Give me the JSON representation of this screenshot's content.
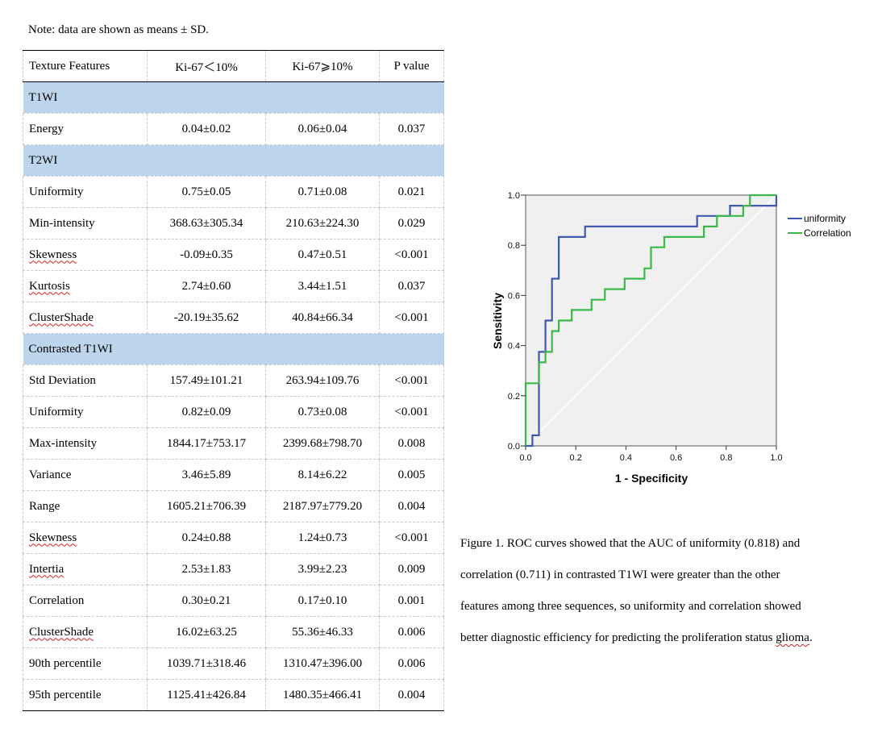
{
  "note": "Note: data are shown as means ± SD.",
  "table": {
    "headers": [
      "Texture Features",
      "Ki-67<10%",
      "Ki-67≥10%",
      "P value"
    ],
    "header_display": [
      "Texture Features",
      "Ki-67＜10%",
      "Ki-67⩾10%",
      "P value"
    ],
    "rows": [
      {
        "type": "section",
        "label": "T1WI"
      },
      {
        "type": "data",
        "feature": "Energy",
        "low": "0.04±0.02",
        "high": "0.06±0.04",
        "p": "0.037",
        "flag": false
      },
      {
        "type": "section",
        "label": "T2WI"
      },
      {
        "type": "data",
        "feature": "Uniformity",
        "low": "0.75±0.05",
        "high": "0.71±0.08",
        "p": "0.021",
        "flag": false
      },
      {
        "type": "data",
        "feature": "Min-intensity",
        "low": "368.63±305.34",
        "high": "210.63±224.30",
        "p": "0.029",
        "flag": false
      },
      {
        "type": "data",
        "feature": "Skewness",
        "low": "-0.09±0.35",
        "high": "0.47±0.51",
        "p": "<0.001",
        "flag": true
      },
      {
        "type": "data",
        "feature": "Kurtosis",
        "low": "2.74±0.60",
        "high": "3.44±1.51",
        "p": "0.037",
        "flag": true
      },
      {
        "type": "data",
        "feature": "ClusterShade",
        "low": "-20.19±35.62",
        "high": "40.84±66.34",
        "p": "<0.001",
        "flag": true
      },
      {
        "type": "section",
        "label": "Contrasted T1WI"
      },
      {
        "type": "data",
        "feature": "Std Deviation",
        "low": "157.49±101.21",
        "high": "263.94±109.76",
        "p": "<0.001",
        "flag": false
      },
      {
        "type": "data",
        "feature": "Uniformity",
        "low": "0.82±0.09",
        "high": "0.73±0.08",
        "p": "<0.001",
        "flag": false
      },
      {
        "type": "data",
        "feature": "Max-intensity",
        "low": "1844.17±753.17",
        "high": "2399.68±798.70",
        "p": "0.008",
        "flag": false
      },
      {
        "type": "data",
        "feature": "Variance",
        "low": "3.46±5.89",
        "high": "8.14±6.22",
        "p": "0.005",
        "flag": false
      },
      {
        "type": "data",
        "feature": "Range",
        "low": "1605.21±706.39",
        "high": "2187.97±779.20",
        "p": "0.004",
        "flag": false
      },
      {
        "type": "data",
        "feature": "Skewness",
        "low": "0.24±0.88",
        "high": "1.24±0.73",
        "p": "<0.001",
        "flag": true
      },
      {
        "type": "data",
        "feature": "Intertia",
        "low": "2.53±1.83",
        "high": "3.99±2.23",
        "p": "0.009",
        "flag": true
      },
      {
        "type": "data",
        "feature": "Correlation",
        "low": "0.30±0.21",
        "high": "0.17±0.10",
        "p": "0.001",
        "flag": false
      },
      {
        "type": "data",
        "feature": "ClusterShade",
        "low": "16.02±63.25",
        "high": "55.36±46.33",
        "p": "0.006",
        "flag": true
      },
      {
        "type": "data",
        "feature": "90th percentile",
        "low": "1039.71±318.46",
        "high": "1310.47±396.00",
        "p": "0.006",
        "flag": false
      },
      {
        "type": "data",
        "feature": "95th percentile",
        "low": "1125.41±426.84",
        "high": "1480.35±466.41",
        "p": "0.004",
        "flag": false
      }
    ],
    "section_color": "#bdd5ec"
  },
  "chart_data": {
    "type": "line",
    "title": "",
    "xlabel": "1 - Specificity",
    "ylabel": "Sensitivity",
    "xlim": [
      0,
      1
    ],
    "ylim": [
      0,
      1
    ],
    "xticks": [
      "0.0",
      "0.2",
      "0.4",
      "0.6",
      "0.8",
      "1.0"
    ],
    "yticks": [
      "0.0",
      "0.2",
      "0.4",
      "0.6",
      "0.8",
      "1.0"
    ],
    "xtick_values": [
      0,
      0.2,
      0.4,
      0.6,
      0.8,
      1.0
    ],
    "ytick_values": [
      0,
      0.2,
      0.4,
      0.6,
      0.8,
      1.0
    ],
    "grid": false,
    "legend_position": "right",
    "background": "#f0f0f0",
    "reference_line": {
      "x": [
        0,
        1
      ],
      "y": [
        0,
        1
      ],
      "color": "#ffffff"
    },
    "series": [
      {
        "name": "uniformity",
        "color": "#3f58b0",
        "x": [
          0,
          0.027,
          0.027,
          0.053,
          0.053,
          0.079,
          0.079,
          0.105,
          0.105,
          0.132,
          0.132,
          0.237,
          0.237,
          0.684,
          0.684,
          0.815,
          0.815,
          1.0,
          1.0
        ],
        "y": [
          0,
          0,
          0.042,
          0.042,
          0.375,
          0.375,
          0.5,
          0.5,
          0.667,
          0.667,
          0.833,
          0.833,
          0.875,
          0.875,
          0.917,
          0.917,
          0.958,
          0.958,
          1.0
        ]
      },
      {
        "name": "Correlation",
        "color": "#3cb84a",
        "x": [
          0,
          0,
          0.053,
          0.053,
          0.079,
          0.079,
          0.105,
          0.105,
          0.132,
          0.132,
          0.184,
          0.184,
          0.263,
          0.263,
          0.316,
          0.316,
          0.395,
          0.395,
          0.474,
          0.474,
          0.5,
          0.5,
          0.553,
          0.553,
          0.711,
          0.711,
          0.763,
          0.763,
          0.868,
          0.868,
          0.895,
          0.895,
          1.0
        ],
        "y": [
          0,
          0.25,
          0.25,
          0.333,
          0.333,
          0.375,
          0.375,
          0.458,
          0.458,
          0.5,
          0.5,
          0.542,
          0.542,
          0.583,
          0.583,
          0.625,
          0.625,
          0.667,
          0.667,
          0.708,
          0.708,
          0.792,
          0.792,
          0.833,
          0.833,
          0.875,
          0.875,
          0.917,
          0.917,
          0.958,
          0.958,
          1.0,
          1.0
        ]
      }
    ]
  },
  "caption": {
    "lines": [
      "Figure 1. ROC curves showed that the AUC of uniformity (0.818) and",
      "correlation (0.711) in contrasted T1WI were greater than the other",
      "features among three sequences, so uniformity and correlation showed",
      "better diagnostic efficiency for predicting the proliferation status glioma."
    ]
  }
}
